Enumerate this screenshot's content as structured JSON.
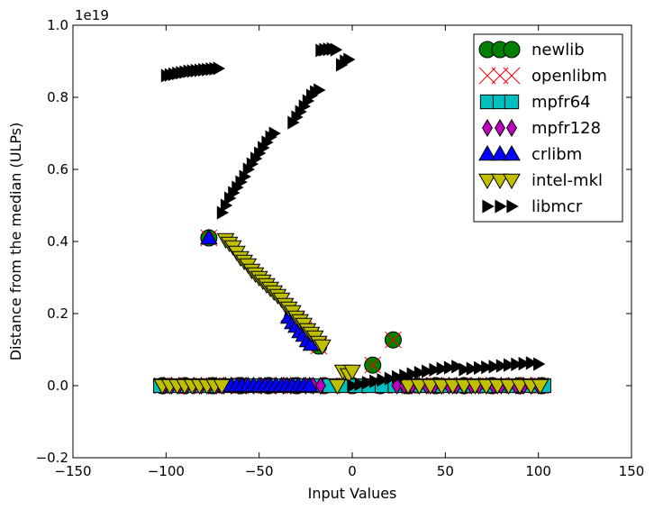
{
  "chart_data": {
    "type": "scatter",
    "title": "",
    "xlabel": "Input Values",
    "ylabel": "Distance from the median (ULPs)",
    "y_offset_text": "1e19",
    "xlim": [
      -150,
      150
    ],
    "ylim": [
      -0.2,
      1.0
    ],
    "x_ticks": [
      -150,
      -100,
      -50,
      0,
      50,
      100,
      150
    ],
    "x_tick_labels": [
      "−150",
      "−100",
      "−50",
      "0",
      "50",
      "100",
      "150"
    ],
    "y_ticks": [
      -0.2,
      0.0,
      0.2,
      0.4,
      0.6,
      0.8,
      1.0
    ],
    "y_tick_labels": [
      "−0.2",
      "0.0",
      "0.2",
      "0.4",
      "0.6",
      "0.8",
      "1.0"
    ],
    "grid": false,
    "legend_position": "top-right",
    "series": [
      {
        "name": "newlib",
        "marker": "circle",
        "color": "#008000",
        "points": [
          [
            -77,
            0.41
          ],
          [
            -32,
            0.19
          ],
          [
            -18,
            0.11
          ],
          [
            11,
            0.057
          ],
          [
            22,
            0.127
          ],
          [
            -102,
            0.0
          ],
          [
            -90,
            0.0
          ],
          [
            -75,
            0.0
          ],
          [
            -60,
            0.0
          ],
          [
            -45,
            0.0
          ],
          [
            -30,
            0.0
          ],
          [
            -15,
            0.0
          ],
          [
            0,
            0.0
          ],
          [
            15,
            0.0
          ],
          [
            30,
            0.0
          ],
          [
            45,
            0.0
          ],
          [
            60,
            0.0
          ],
          [
            75,
            0.0
          ],
          [
            90,
            0.0
          ],
          [
            102,
            0.0
          ]
        ]
      },
      {
        "name": "openlibm",
        "marker": "x",
        "color": "#ff0000",
        "points": [
          [
            -77,
            0.41
          ],
          [
            -34,
            0.2
          ],
          [
            -30,
            0.18
          ],
          [
            -26,
            0.155
          ],
          [
            -22,
            0.13
          ],
          [
            -18,
            0.11
          ],
          [
            11,
            0.057
          ],
          [
            22,
            0.127
          ],
          [
            -102,
            0.0
          ],
          [
            -95,
            0.0
          ],
          [
            -88,
            0.0
          ],
          [
            -81,
            0.0
          ],
          [
            -74,
            0.0
          ],
          [
            -67,
            0.0
          ],
          [
            -60,
            0.0
          ],
          [
            -53,
            0.0
          ],
          [
            -46,
            0.0
          ],
          [
            -39,
            0.0
          ],
          [
            -32,
            0.0
          ],
          [
            -25,
            0.0
          ],
          [
            -18,
            0.0
          ],
          [
            -11,
            0.0
          ],
          [
            -4,
            0.0
          ],
          [
            3,
            0.0
          ],
          [
            10,
            0.0
          ],
          [
            17,
            0.0
          ],
          [
            24,
            0.0
          ],
          [
            31,
            0.0
          ],
          [
            38,
            0.0
          ],
          [
            45,
            0.0
          ],
          [
            52,
            0.0
          ],
          [
            59,
            0.0
          ],
          [
            66,
            0.0
          ],
          [
            73,
            0.0
          ],
          [
            80,
            0.0
          ],
          [
            87,
            0.0
          ],
          [
            94,
            0.0
          ],
          [
            101,
            0.0
          ]
        ]
      },
      {
        "name": "mpfr64",
        "marker": "square",
        "color": "#00bfbf",
        "points": [
          [
            -103,
            0.0
          ],
          [
            -96,
            0.0
          ],
          [
            -89,
            0.0
          ],
          [
            -82,
            0.0
          ],
          [
            -75,
            0.0
          ],
          [
            -68,
            0.0
          ],
          [
            -61,
            0.0
          ],
          [
            -54,
            0.0
          ],
          [
            -47,
            0.0
          ],
          [
            -40,
            0.0
          ],
          [
            -33,
            0.0
          ],
          [
            -26,
            0.0
          ],
          [
            -19,
            0.0
          ],
          [
            -12,
            0.0
          ],
          [
            -5,
            0.0
          ],
          [
            2,
            0.0
          ],
          [
            9,
            0.0
          ],
          [
            16,
            0.0
          ],
          [
            23,
            0.0
          ],
          [
            30,
            0.0
          ],
          [
            37,
            0.0
          ],
          [
            44,
            0.0
          ],
          [
            51,
            0.0
          ],
          [
            58,
            0.0
          ],
          [
            65,
            0.0
          ],
          [
            72,
            0.0
          ],
          [
            79,
            0.0
          ],
          [
            86,
            0.0
          ],
          [
            93,
            0.0
          ],
          [
            100,
            0.0
          ],
          [
            103,
            0.0
          ]
        ]
      },
      {
        "name": "mpfr128",
        "marker": "diamond",
        "color": "#bf00bf",
        "points": [
          [
            -101,
            0.0
          ],
          [
            -97,
            0.0
          ],
          [
            -93,
            0.0
          ],
          [
            -89,
            0.0
          ],
          [
            -85,
            0.0
          ],
          [
            -81,
            0.0
          ],
          [
            -77,
            0.0
          ],
          [
            -73,
            0.0
          ],
          [
            -69,
            0.0
          ],
          [
            -65,
            0.0
          ],
          [
            -61,
            0.0
          ],
          [
            -57,
            0.0
          ],
          [
            -53,
            0.0
          ],
          [
            -49,
            0.0
          ],
          [
            -45,
            0.0
          ],
          [
            -41,
            0.0
          ],
          [
            -37,
            0.0
          ],
          [
            -33,
            0.0
          ],
          [
            -29,
            0.0
          ],
          [
            -25,
            0.0
          ],
          [
            -21,
            0.0
          ],
          [
            -17,
            0.0
          ],
          [
            24,
            0.0
          ],
          [
            28,
            0.0
          ],
          [
            32,
            0.0
          ],
          [
            36,
            0.0
          ],
          [
            40,
            0.0
          ],
          [
            44,
            0.0
          ],
          [
            48,
            0.0
          ],
          [
            52,
            0.0
          ],
          [
            56,
            0.0
          ],
          [
            60,
            0.0
          ],
          [
            64,
            0.0
          ],
          [
            68,
            0.0
          ],
          [
            72,
            0.0
          ],
          [
            76,
            0.0
          ],
          [
            80,
            0.0
          ],
          [
            84,
            0.0
          ],
          [
            88,
            0.0
          ],
          [
            92,
            0.0
          ],
          [
            96,
            0.0
          ],
          [
            100,
            0.0
          ]
        ]
      },
      {
        "name": "crlibm",
        "marker": "triangle-up",
        "color": "#0000ff",
        "points": [
          [
            -77,
            0.41
          ],
          [
            -34,
            0.19
          ],
          [
            -32,
            0.175
          ],
          [
            -30,
            0.165
          ],
          [
            -28,
            0.15
          ],
          [
            -26,
            0.14
          ],
          [
            -24,
            0.125
          ],
          [
            -22,
            0.115
          ],
          [
            -68,
            0.0
          ],
          [
            -65,
            0.0
          ],
          [
            -62,
            0.0
          ],
          [
            -59,
            0.0
          ],
          [
            -56,
            0.0
          ],
          [
            -53,
            0.0
          ],
          [
            -50,
            0.0
          ],
          [
            -47,
            0.0
          ],
          [
            -44,
            0.0
          ],
          [
            -41,
            0.0
          ],
          [
            -38,
            0.0
          ],
          [
            -35,
            0.0
          ],
          [
            -32,
            0.0
          ],
          [
            -29,
            0.0
          ],
          [
            -26,
            0.0
          ],
          [
            -23,
            0.0
          ]
        ]
      },
      {
        "name": "intel-mkl",
        "marker": "triangle-down",
        "color": "#bfbf00",
        "points": [
          [
            -68,
            0.405
          ],
          [
            -66,
            0.395
          ],
          [
            -64,
            0.385
          ],
          [
            -62,
            0.37
          ],
          [
            -60,
            0.355
          ],
          [
            -58,
            0.345
          ],
          [
            -56,
            0.335
          ],
          [
            -54,
            0.32
          ],
          [
            -52,
            0.31
          ],
          [
            -50,
            0.3
          ],
          [
            -48,
            0.29
          ],
          [
            -46,
            0.28
          ],
          [
            -44,
            0.27
          ],
          [
            -42,
            0.26
          ],
          [
            -40,
            0.25
          ],
          [
            -38,
            0.24
          ],
          [
            -36,
            0.225
          ],
          [
            -34,
            0.215
          ],
          [
            -32,
            0.205
          ],
          [
            -30,
            0.19
          ],
          [
            -28,
            0.18
          ],
          [
            -26,
            0.17
          ],
          [
            -24,
            0.155
          ],
          [
            -22,
            0.145
          ],
          [
            -20,
            0.135
          ],
          [
            -18,
            0.12
          ],
          [
            -16,
            0.11
          ],
          [
            -5,
            0.04
          ],
          [
            -2,
            0.03
          ],
          [
            0,
            0.04
          ],
          [
            -102,
            0.0
          ],
          [
            -98,
            0.0
          ],
          [
            -94,
            0.0
          ],
          [
            -90,
            0.0
          ],
          [
            -86,
            0.0
          ],
          [
            -82,
            0.0
          ],
          [
            -78,
            0.0
          ],
          [
            -74,
            0.0
          ],
          [
            -70,
            0.0
          ],
          [
            -8,
            0.0
          ],
          [
            30,
            0.0
          ],
          [
            36,
            0.0
          ],
          [
            42,
            0.0
          ],
          [
            48,
            0.0
          ],
          [
            54,
            0.0
          ],
          [
            60,
            0.0
          ],
          [
            66,
            0.0
          ],
          [
            72,
            0.0
          ],
          [
            78,
            0.0
          ],
          [
            84,
            0.0
          ],
          [
            90,
            0.0
          ],
          [
            96,
            0.0
          ],
          [
            101,
            0.0
          ]
        ]
      },
      {
        "name": "libmcr",
        "marker": "triangle-right",
        "color": "#000000",
        "points": [
          [
            -100,
            0.86
          ],
          [
            -98,
            0.862
          ],
          [
            -96,
            0.864
          ],
          [
            -94,
            0.866
          ],
          [
            -92,
            0.868
          ],
          [
            -90,
            0.87
          ],
          [
            -88,
            0.872
          ],
          [
            -86,
            0.873
          ],
          [
            -84,
            0.874
          ],
          [
            -82,
            0.875
          ],
          [
            -80,
            0.876
          ],
          [
            -78,
            0.877
          ],
          [
            -76,
            0.878
          ],
          [
            -74,
            0.879
          ],
          [
            -72,
            0.88
          ],
          [
            -70,
            0.48
          ],
          [
            -68,
            0.5
          ],
          [
            -66,
            0.52
          ],
          [
            -64,
            0.535
          ],
          [
            -62,
            0.55
          ],
          [
            -60,
            0.565
          ],
          [
            -58,
            0.58
          ],
          [
            -56,
            0.6
          ],
          [
            -54,
            0.615
          ],
          [
            -52,
            0.63
          ],
          [
            -50,
            0.645
          ],
          [
            -48,
            0.66
          ],
          [
            -46,
            0.675
          ],
          [
            -44,
            0.69
          ],
          [
            -42,
            0.7
          ],
          [
            -32,
            0.73
          ],
          [
            -30,
            0.745
          ],
          [
            -28,
            0.76
          ],
          [
            -26,
            0.775
          ],
          [
            -24,
            0.79
          ],
          [
            -22,
            0.805
          ],
          [
            -20,
            0.815
          ],
          [
            -18,
            0.82
          ],
          [
            -17,
            0.93
          ],
          [
            -15,
            0.932
          ],
          [
            -13,
            0.933
          ],
          [
            -11,
            0.934
          ],
          [
            -9,
            0.932
          ],
          [
            -6,
            0.89
          ],
          [
            -4,
            0.9
          ],
          [
            -2,
            0.905
          ],
          [
            0,
            0.0
          ],
          [
            4,
            0.004
          ],
          [
            8,
            0.008
          ],
          [
            12,
            0.012
          ],
          [
            16,
            0.016
          ],
          [
            20,
            0.02
          ],
          [
            24,
            0.024
          ],
          [
            28,
            0.028
          ],
          [
            32,
            0.032
          ],
          [
            36,
            0.036
          ],
          [
            40,
            0.04
          ],
          [
            44,
            0.044
          ],
          [
            48,
            0.047
          ],
          [
            52,
            0.05
          ],
          [
            56,
            0.053
          ],
          [
            60,
            0.045
          ],
          [
            64,
            0.047
          ],
          [
            68,
            0.049
          ],
          [
            72,
            0.051
          ],
          [
            76,
            0.053
          ],
          [
            80,
            0.055
          ],
          [
            84,
            0.057
          ],
          [
            88,
            0.059
          ],
          [
            92,
            0.061
          ],
          [
            96,
            0.063
          ],
          [
            100,
            0.06
          ]
        ]
      }
    ]
  }
}
